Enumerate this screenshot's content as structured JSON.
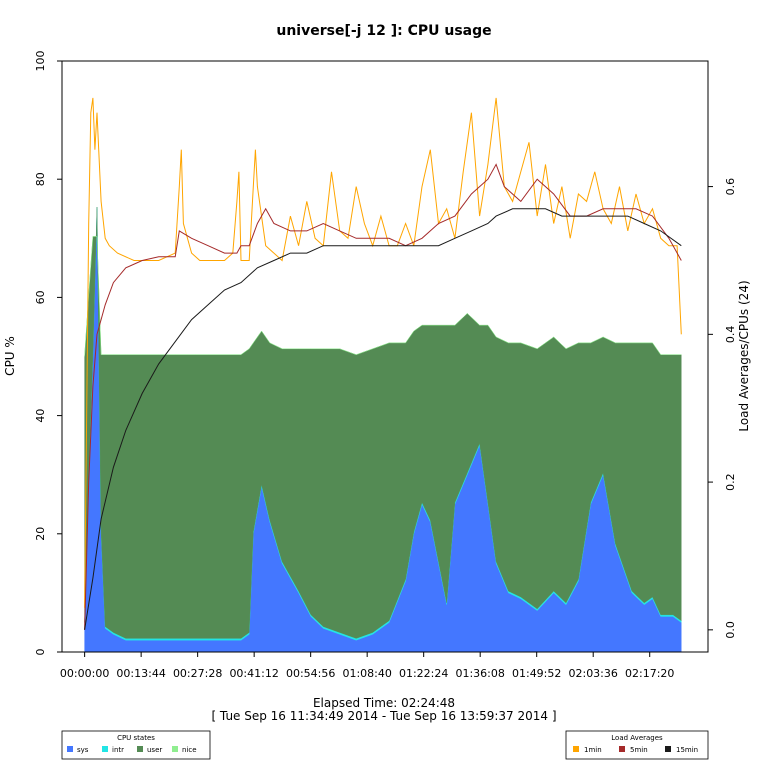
{
  "chart_data": {
    "type": "area",
    "title": "universe[-j 12  ]: CPU usage",
    "xlabel": "Elapsed Time: 02:24:48",
    "xlabel2": "[ Tue Sep 16 11:34:49 2014 - Tue Sep 16 13:59:37 2014 ]",
    "ylabel_left": "CPU %",
    "ylabel_right": "Load Averages/CPUs (24)",
    "ylim_left": [
      0,
      100
    ],
    "ylim_right": [
      -0.03,
      0.77
    ],
    "y_ticks_left": [
      "0",
      "20",
      "40",
      "60",
      "80",
      "100"
    ],
    "y_ticks_right": [
      "0.0",
      "0.2",
      "0.4",
      "0.6"
    ],
    "x_ticks": [
      "00:00:00",
      "00:13:44",
      "00:27:28",
      "00:41:12",
      "00:54:56",
      "01:08:40",
      "01:22:24",
      "01:36:08",
      "01:49:52",
      "02:03:36",
      "02:17:20"
    ],
    "xlim_minutes": [
      -5.5,
      151.5
    ],
    "grid": false,
    "cpu_states_legend": {
      "title": "CPU states",
      "items": [
        {
          "name": "sys",
          "color": "#4477ff"
        },
        {
          "name": "intr",
          "color": "#22e5e5"
        },
        {
          "name": "user",
          "color": "#548b54"
        },
        {
          "name": "nice",
          "color": "#90ee90"
        }
      ]
    },
    "load_legend": {
      "title": "Load Averages",
      "items": [
        {
          "name": "1min",
          "color": "#ffa500"
        },
        {
          "name": "5min",
          "color": "#a52a2a"
        },
        {
          "name": "15min",
          "color": "#1a1a1a"
        }
      ]
    },
    "x_minutes": [
      0,
      1,
      2,
      3,
      4,
      5,
      7,
      10,
      14,
      18,
      22,
      27,
      30,
      34,
      38,
      40,
      41,
      43,
      45,
      48,
      52,
      55,
      58,
      62,
      66,
      70,
      74,
      78,
      80,
      82,
      84,
      86,
      88,
      90,
      93,
      96,
      98,
      100,
      103,
      106,
      110,
      114,
      117,
      120,
      123,
      126,
      129,
      133,
      136,
      138,
      140,
      143,
      145
    ],
    "series_cpu": [
      {
        "name": "sys",
        "values": [
          5,
          30,
          50,
          75,
          20,
          4,
          3,
          2,
          2,
          2,
          2,
          2,
          2,
          2,
          2,
          3,
          20,
          28,
          22,
          15,
          10,
          6,
          4,
          3,
          2,
          3,
          5,
          12,
          20,
          25,
          22,
          15,
          8,
          25,
          30,
          35,
          25,
          15,
          10,
          9,
          7,
          10,
          8,
          12,
          25,
          30,
          18,
          10,
          8,
          9,
          6,
          6,
          5
        ]
      },
      {
        "name": "intr",
        "values": [
          0,
          0.3,
          0.3,
          0.3,
          0.3,
          0.3,
          0.3,
          0.3,
          0.3,
          0.3,
          0.3,
          0.3,
          0.3,
          0.3,
          0.3,
          0.3,
          0.3,
          0.3,
          0.3,
          0.3,
          0.3,
          0.3,
          0.3,
          0.3,
          0.3,
          0.3,
          0.3,
          0.3,
          0.3,
          0.3,
          0.3,
          0.3,
          0.3,
          0.3,
          0.3,
          0.3,
          0.3,
          0.3,
          0.3,
          0.3,
          0.3,
          0.3,
          0.3,
          0.3,
          0.3,
          0.3,
          0.3,
          0.3,
          0.3,
          0.3,
          0.3,
          0.3,
          0.3
        ]
      },
      {
        "name": "user",
        "values": [
          45,
          30,
          20,
          -5,
          30,
          46,
          47,
          48,
          48,
          48,
          48,
          48,
          48,
          48,
          48,
          48,
          32,
          26,
          30,
          36,
          41,
          45,
          47,
          48,
          48,
          48,
          47,
          40,
          34,
          30,
          33,
          40,
          47,
          30,
          27,
          20,
          30,
          38,
          42,
          43,
          44,
          43,
          43,
          40,
          27,
          23,
          34,
          42,
          44,
          43,
          44,
          44,
          45
        ]
      },
      {
        "name": "nice",
        "values": [
          0,
          0,
          0,
          0,
          0,
          0,
          0,
          0,
          0,
          0,
          0,
          0,
          0,
          0,
          0,
          0,
          0,
          0,
          0,
          0,
          0,
          0,
          0,
          0,
          0,
          0,
          0,
          0,
          0,
          0,
          0,
          0,
          0,
          0,
          0,
          0,
          0,
          0,
          0,
          0,
          0,
          0,
          0,
          0,
          0,
          0,
          0,
          0,
          0,
          0,
          0,
          0,
          0
        ]
      }
    ],
    "series_load": [
      {
        "name": "1min",
        "x": [
          0,
          1,
          1.5,
          2,
          2.5,
          3,
          4,
          5,
          6,
          8,
          12,
          18,
          22,
          23,
          23.5,
          24,
          26,
          28,
          30,
          32,
          34,
          36,
          37,
          37.5,
          38,
          40,
          41,
          41.5,
          42,
          44,
          46,
          48,
          50,
          52,
          54,
          56,
          58,
          60,
          62,
          64,
          66,
          68,
          70,
          72,
          74,
          76,
          78,
          80,
          82,
          84,
          86,
          88,
          90,
          92,
          94,
          96,
          98,
          100,
          102,
          104,
          106,
          108,
          110,
          112,
          114,
          116,
          118,
          120,
          122,
          124,
          126,
          128,
          130,
          132,
          134,
          136,
          138,
          140,
          142,
          144,
          145
        ],
        "values": [
          0.03,
          0.55,
          0.7,
          0.72,
          0.65,
          0.7,
          0.58,
          0.53,
          0.52,
          0.51,
          0.5,
          0.5,
          0.51,
          0.6,
          0.65,
          0.55,
          0.51,
          0.5,
          0.5,
          0.5,
          0.5,
          0.51,
          0.58,
          0.62,
          0.5,
          0.5,
          0.6,
          0.65,
          0.6,
          0.52,
          0.51,
          0.5,
          0.56,
          0.52,
          0.58,
          0.53,
          0.52,
          0.62,
          0.54,
          0.53,
          0.6,
          0.55,
          0.52,
          0.56,
          0.52,
          0.52,
          0.55,
          0.52,
          0.6,
          0.65,
          0.55,
          0.57,
          0.53,
          0.62,
          0.7,
          0.56,
          0.63,
          0.72,
          0.6,
          0.58,
          0.62,
          0.66,
          0.56,
          0.63,
          0.55,
          0.6,
          0.53,
          0.59,
          0.58,
          0.62,
          0.57,
          0.55,
          0.6,
          0.54,
          0.59,
          0.55,
          0.57,
          0.53,
          0.52,
          0.52,
          0.4
        ]
      },
      {
        "name": "5min",
        "x": [
          0,
          1,
          2,
          3,
          4,
          5,
          7,
          10,
          14,
          18,
          22,
          23,
          26,
          30,
          34,
          37,
          38,
          40,
          42,
          44,
          46,
          50,
          54,
          58,
          62,
          66,
          70,
          74,
          78,
          82,
          86,
          90,
          94,
          98,
          100,
          102,
          106,
          110,
          114,
          118,
          122,
          126,
          130,
          134,
          138,
          142,
          145
        ],
        "values": [
          0.0,
          0.2,
          0.33,
          0.4,
          0.42,
          0.44,
          0.47,
          0.49,
          0.5,
          0.505,
          0.505,
          0.54,
          0.53,
          0.52,
          0.51,
          0.51,
          0.52,
          0.52,
          0.55,
          0.57,
          0.55,
          0.54,
          0.54,
          0.55,
          0.54,
          0.53,
          0.53,
          0.53,
          0.52,
          0.53,
          0.55,
          0.56,
          0.59,
          0.61,
          0.63,
          0.6,
          0.58,
          0.61,
          0.59,
          0.56,
          0.56,
          0.57,
          0.57,
          0.57,
          0.56,
          0.53,
          0.5
        ]
      },
      {
        "name": "15min",
        "x": [
          0,
          2,
          4,
          7,
          10,
          14,
          18,
          22,
          26,
          30,
          34,
          38,
          42,
          46,
          50,
          54,
          58,
          62,
          66,
          70,
          74,
          78,
          82,
          86,
          90,
          94,
          98,
          100,
          104,
          108,
          112,
          116,
          120,
          124,
          128,
          132,
          136,
          140,
          145
        ],
        "values": [
          0.0,
          0.07,
          0.15,
          0.22,
          0.27,
          0.32,
          0.36,
          0.39,
          0.42,
          0.44,
          0.46,
          0.47,
          0.49,
          0.5,
          0.51,
          0.51,
          0.52,
          0.52,
          0.52,
          0.52,
          0.52,
          0.52,
          0.52,
          0.52,
          0.53,
          0.54,
          0.55,
          0.56,
          0.57,
          0.57,
          0.57,
          0.56,
          0.56,
          0.56,
          0.56,
          0.56,
          0.55,
          0.54,
          0.52
        ]
      }
    ]
  }
}
